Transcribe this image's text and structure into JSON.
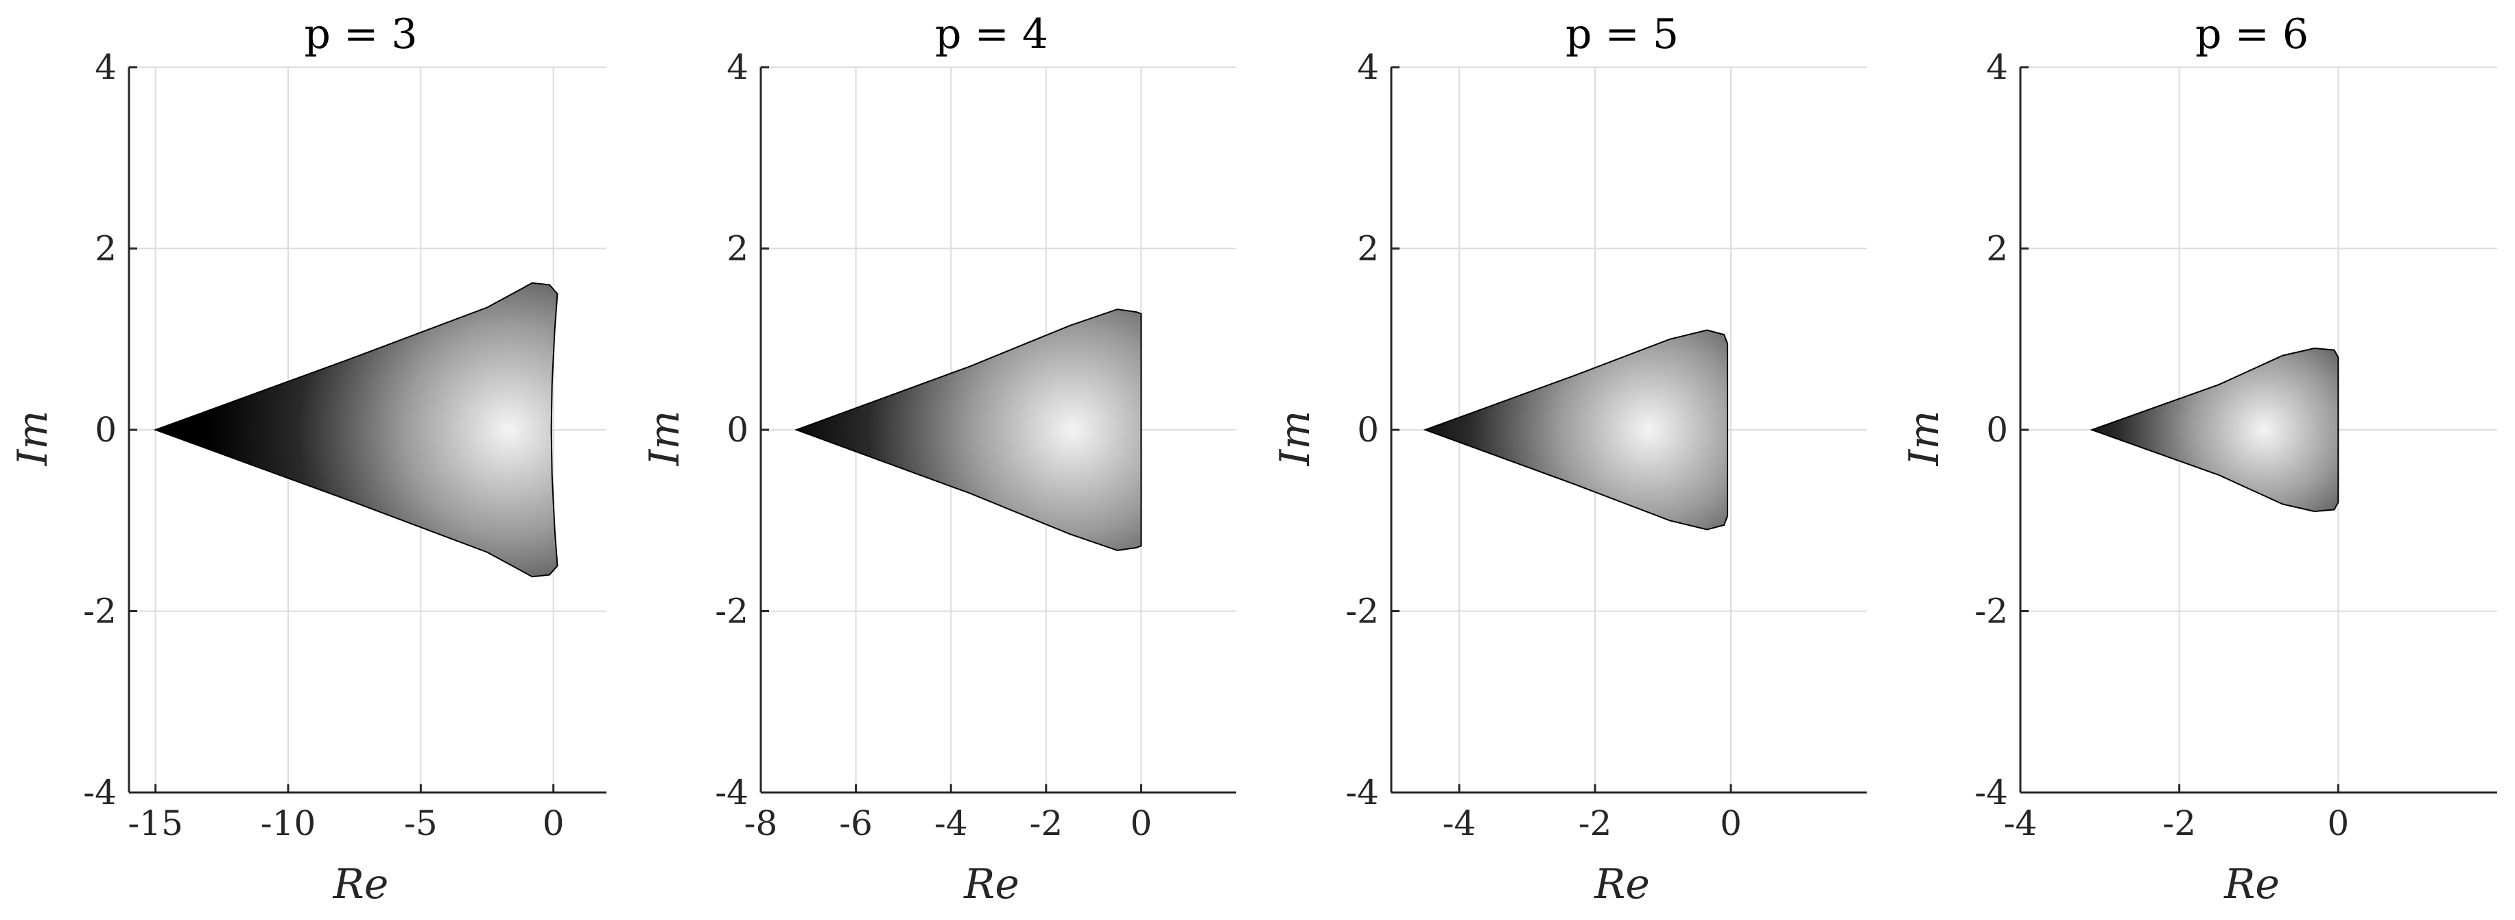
{
  "chart_data": [
    {
      "type": "area",
      "title": "p = 3",
      "xlabel": "Re",
      "ylabel": "Im",
      "xlim": [
        -16,
        2
      ],
      "ylim": [
        -4,
        4
      ],
      "xticks": [
        -15,
        -10,
        -5,
        0
      ],
      "xtick_labels": [
        "-15",
        "-10",
        "-5",
        "0"
      ],
      "yticks": [
        -4,
        -2,
        0,
        2,
        4
      ],
      "ytick_labels": [
        "-4",
        "-2",
        "0",
        "2",
        "4"
      ],
      "grid": true,
      "region": {
        "boundary_upper": [
          [
            -15.0,
            0.0
          ],
          [
            -7.5,
            0.8
          ],
          [
            -2.5,
            1.35
          ],
          [
            -0.8,
            1.62
          ],
          [
            -0.15,
            1.6
          ],
          [
            0.15,
            1.5
          ]
        ],
        "boundary_right": [
          [
            0.15,
            1.5
          ],
          [
            0.05,
            1.1
          ],
          [
            -0.05,
            0.5
          ],
          [
            -0.08,
            0.0
          ],
          [
            -0.05,
            -0.5
          ],
          [
            0.05,
            -1.1
          ],
          [
            0.15,
            -1.5
          ]
        ],
        "symmetric_about_real_axis": true,
        "shading": "grayscale, dark at left vertex, lightest near Re ≈ -1.5"
      }
    },
    {
      "type": "area",
      "title": "p = 4",
      "xlabel": "Re",
      "ylabel": "Im",
      "xlim": [
        -8,
        2
      ],
      "ylim": [
        -4,
        4
      ],
      "xticks": [
        -8,
        -6,
        -4,
        -2,
        0
      ],
      "xtick_labels": [
        "-8",
        "-6",
        "-4",
        "-2",
        "0"
      ],
      "yticks": [
        -4,
        -2,
        0,
        2,
        4
      ],
      "ytick_labels": [
        "-4",
        "-2",
        "0",
        "2",
        "4"
      ],
      "grid": true,
      "region": {
        "boundary_upper": [
          [
            -7.25,
            0.0
          ],
          [
            -3.6,
            0.7
          ],
          [
            -1.5,
            1.15
          ],
          [
            -0.5,
            1.33
          ],
          [
            -0.1,
            1.3
          ],
          [
            0.0,
            1.28
          ]
        ],
        "boundary_right": [
          [
            0.0,
            1.28
          ],
          [
            0.0,
            0.6
          ],
          [
            0.0,
            0.0
          ],
          [
            0.0,
            -0.6
          ],
          [
            0.0,
            -1.28
          ]
        ],
        "symmetric_about_real_axis": true,
        "shading": "grayscale, dark at left vertex, lightest near Re ≈ -1.2"
      }
    },
    {
      "type": "area",
      "title": "p = 5",
      "xlabel": "Re",
      "ylabel": "Im",
      "xlim": [
        -5,
        2
      ],
      "ylim": [
        -4,
        4
      ],
      "xticks": [
        -4,
        -2,
        0
      ],
      "xtick_labels": [
        "-4",
        "-2",
        "0"
      ],
      "yticks": [
        -4,
        -2,
        0,
        2,
        4
      ],
      "ytick_labels": [
        "-4",
        "-2",
        "0",
        "2",
        "4"
      ],
      "grid": true,
      "region": {
        "boundary_upper": [
          [
            -4.5,
            0.0
          ],
          [
            -2.3,
            0.6
          ],
          [
            -0.9,
            1.0
          ],
          [
            -0.35,
            1.1
          ],
          [
            -0.1,
            1.05
          ],
          [
            -0.05,
            0.95
          ]
        ],
        "boundary_right": [
          [
            -0.05,
            0.95
          ],
          [
            -0.05,
            0.45
          ],
          [
            -0.05,
            0.0
          ],
          [
            -0.05,
            -0.45
          ],
          [
            -0.05,
            -0.95
          ]
        ],
        "symmetric_about_real_axis": true,
        "shading": "grayscale, dark at left vertex, lightest near Re ≈ -1.0"
      }
    },
    {
      "type": "area",
      "title": "p = 6",
      "xlabel": "Re",
      "ylabel": "Im",
      "xlim": [
        -4,
        2
      ],
      "ylim": [
        -4,
        4
      ],
      "xticks": [
        -4,
        -2,
        0
      ],
      "xtick_labels": [
        "-4",
        "-2",
        "0"
      ],
      "yticks": [
        -4,
        -2,
        0,
        2,
        4
      ],
      "ytick_labels": [
        "-4",
        "-2",
        "0",
        "2",
        "4"
      ],
      "grid": true,
      "region": {
        "boundary_upper": [
          [
            -3.1,
            0.0
          ],
          [
            -1.5,
            0.5
          ],
          [
            -0.7,
            0.82
          ],
          [
            -0.3,
            0.9
          ],
          [
            -0.05,
            0.88
          ],
          [
            0.0,
            0.8
          ]
        ],
        "boundary_right": [
          [
            0.0,
            0.8
          ],
          [
            0.0,
            0.4
          ],
          [
            0.0,
            0.0
          ],
          [
            0.0,
            -0.4
          ],
          [
            0.0,
            -0.8
          ]
        ],
        "symmetric_about_real_axis": true,
        "shading": "grayscale, dark at left vertex, lightest near Re ≈ -0.8"
      }
    }
  ],
  "colors": {
    "axis": "#262626",
    "grid": "#dcdcdc",
    "region_dark": "#000000",
    "region_light": "#f4f4f4",
    "background": "#ffffff"
  }
}
